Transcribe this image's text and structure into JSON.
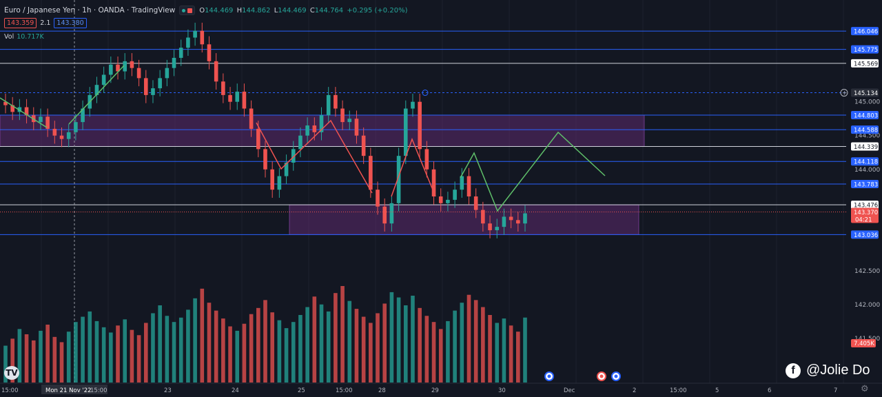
{
  "header": {
    "title": "Euro / Japanese Yen · 1h · OANDA · TradingView",
    "ohlc": [
      {
        "k": "O",
        "v": "144.469"
      },
      {
        "k": "H",
        "v": "144.862"
      },
      {
        "k": "L",
        "v": "144.469"
      },
      {
        "k": "C",
        "v": "144.764"
      }
    ],
    "change": "+0.295 (+0.20%)",
    "bid": "143.359",
    "spread": "2.1",
    "ask": "143.380",
    "vol_label": "Vol",
    "vol_value": "10.717K"
  },
  "colors": {
    "background": "#131722",
    "grid": "#1e222d",
    "up": "#26a69a",
    "down": "#ef5350",
    "level_blue": "#2962ff",
    "level_white": "#d1d4dc",
    "zone": "#5d2a6e",
    "arrow_green": "#5fbf6a",
    "arrow_red": "#ef5350"
  },
  "axis": {
    "price_min": 141.0,
    "price_max": 146.2,
    "ticks": [
      "145.000",
      "144.500",
      "144.000",
      "142.500",
      "142.000",
      "141.500"
    ],
    "time_labels": [
      "15:00",
      "Mon 21 Nov '22",
      "15:00",
      "23",
      "24",
      "25",
      "15:00",
      "28",
      "29",
      "30",
      "Dec",
      "2",
      "15:00",
      "5",
      "6",
      "7"
    ]
  },
  "levels": [
    {
      "price": 146.046,
      "label": "146.046",
      "style": "blue"
    },
    {
      "price": 145.775,
      "label": "145.775",
      "style": "blue"
    },
    {
      "price": 145.569,
      "label": "145.569",
      "style": "white"
    },
    {
      "price": 145.134,
      "label": "145.134",
      "style": "crosshair"
    },
    {
      "price": 144.803,
      "label": "144.803",
      "style": "blue"
    },
    {
      "price": 144.588,
      "label": "144.588",
      "style": "blue"
    },
    {
      "price": 144.339,
      "label": "144.339",
      "style": "white"
    },
    {
      "price": 144.118,
      "label": "144.118",
      "style": "blue"
    },
    {
      "price": 143.783,
      "label": "143.783",
      "style": "blue"
    },
    {
      "price": 143.476,
      "label": "143.476",
      "style": "white"
    },
    {
      "price": 143.036,
      "label": "143.036",
      "style": "blue"
    }
  ],
  "last_price": {
    "price": 143.37,
    "label": "143.370",
    "countdown": "04:21"
  },
  "volume_badge": "7.405K",
  "credit": "@Jolie Do",
  "chart_data": {
    "type": "candlestick",
    "series_close": [
      144.95,
      144.85,
      144.92,
      144.8,
      144.7,
      144.78,
      144.6,
      144.5,
      144.45,
      144.55,
      144.7,
      144.9,
      145.1,
      145.25,
      145.4,
      145.55,
      145.45,
      145.6,
      145.5,
      145.35,
      145.1,
      145.2,
      145.35,
      145.5,
      145.65,
      145.8,
      145.95,
      146.05,
      145.85,
      145.6,
      145.3,
      145.1,
      145.0,
      145.15,
      144.9,
      144.6,
      144.3,
      144.0,
      143.7,
      143.9,
      144.1,
      144.3,
      144.5,
      144.65,
      144.55,
      144.8,
      145.1,
      144.9,
      144.7,
      144.75,
      144.5,
      144.2,
      143.7,
      143.45,
      143.2,
      143.5,
      144.2,
      144.9,
      145.0,
      144.3,
      144.0,
      143.6,
      143.5,
      143.55,
      143.7,
      143.9,
      143.6,
      143.4,
      143.2,
      143.1,
      143.15,
      143.3,
      143.25,
      143.2,
      143.35
    ],
    "volumes": [
      4.2,
      5.0,
      6.1,
      5.5,
      4.8,
      5.9,
      6.6,
      5.2,
      4.6,
      5.8,
      6.9,
      7.5,
      8.1,
      7.0,
      6.3,
      5.7,
      6.5,
      7.2,
      6.0,
      5.4,
      6.8,
      7.9,
      8.8,
      7.6,
      6.9,
      7.4,
      8.3,
      9.6,
      10.7,
      9.1,
      8.2,
      7.3,
      6.4,
      5.9,
      6.7,
      7.8,
      8.5,
      9.4,
      8.0,
      7.1,
      6.2,
      6.9,
      7.7,
      8.6,
      9.8,
      8.9,
      8.1,
      10.2,
      11.0,
      9.3,
      8.4,
      7.5,
      6.8,
      7.9,
      9.0,
      10.3,
      9.7,
      8.8,
      9.9,
      8.5,
      7.6,
      6.9,
      6.1,
      7.0,
      8.2,
      9.1,
      10.0,
      9.4,
      8.6,
      7.7,
      6.8,
      7.3,
      6.5,
      5.8,
      7.405
    ],
    "time_range": [
      "Nov 21 2022",
      "Nov 30 2022"
    ],
    "zones": [
      {
        "from_price": 144.339,
        "to_price": 144.803
      },
      {
        "from_price": 143.036,
        "to_price": 143.476
      }
    ]
  }
}
